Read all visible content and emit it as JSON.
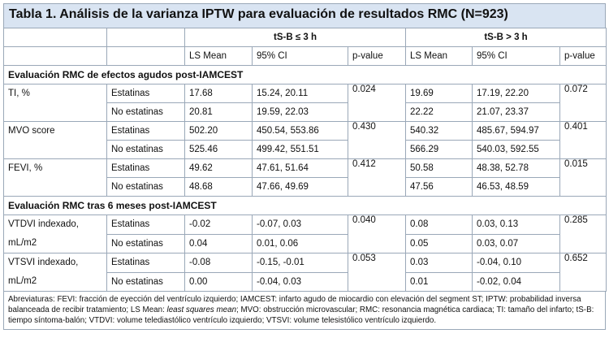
{
  "title": "Tabla 1. Análisis de la varianza IPTW para evaluación de resultados RMC (N=923)",
  "groups": [
    "tS-B ≤ 3 h",
    "tS-B > 3 h"
  ],
  "columns": [
    "LS Mean",
    "95% CI",
    "p-value",
    "LS Mean",
    "95% CI",
    "p-value"
  ],
  "sections": [
    {
      "label": "Evaluación RMC de efectos agudos post-IAMCEST",
      "rows": [
        {
          "var": "TI, %",
          "groups": [
            {
              "label": "Estatinas",
              "g1": [
                "17.68",
                "15.24, 20.11"
              ],
              "g2": [
                "19.69",
                "17.19, 22.20"
              ]
            },
            {
              "label": "No estatinas",
              "g1": [
                "20.81",
                "19.59, 22.03"
              ],
              "g2": [
                "22.22",
                "21.07, 23.37"
              ]
            }
          ],
          "p1": "0.024",
          "p2": "0.072"
        },
        {
          "var": "MVO score",
          "groups": [
            {
              "label": "Estatinas",
              "g1": [
                "502.20",
                "450.54, 553.86"
              ],
              "g2": [
                "540.32",
                "485.67, 594.97"
              ]
            },
            {
              "label": "No estatinas",
              "g1": [
                "525.46",
                "499.42, 551.51"
              ],
              "g2": [
                "566.29",
                "540.03, 592.55"
              ]
            }
          ],
          "p1": "0.430",
          "p2": "0.401"
        },
        {
          "var": "FEVI, %",
          "groups": [
            {
              "label": "Estatinas",
              "g1": [
                "49.62",
                "47.61, 51.64"
              ],
              "g2": [
                "50.58",
                "48.38, 52.78"
              ]
            },
            {
              "label": "No estatinas",
              "g1": [
                "48.68",
                "47.66, 49.69"
              ],
              "g2": [
                "47.56",
                "46.53, 48.59"
              ]
            }
          ],
          "p1": "0.412",
          "p2": "0.015"
        }
      ]
    },
    {
      "label": "Evaluación RMC tras 6 meses post-IAMCEST",
      "rows": [
        {
          "var": "VTDVI indexado, mL/m2",
          "groups": [
            {
              "label": "Estatinas",
              "g1": [
                "-0.02",
                "-0.07, 0.03"
              ],
              "g2": [
                "0.08",
                "0.03, 0.13"
              ]
            },
            {
              "label": "No estatinas",
              "g1": [
                "0.04",
                "0.01, 0.06"
              ],
              "g2": [
                "0.05",
                "0.03, 0.07"
              ]
            }
          ],
          "p1": "0.040",
          "p2": "0.285"
        },
        {
          "var": "VTSVI indexado, mL/m2",
          "groups": [
            {
              "label": "Estatinas",
              "g1": [
                "-0.08",
                "-0.15, -0.01"
              ],
              "g2": [
                "0.03",
                "-0.04, 0.10"
              ]
            },
            {
              "label": "No estatinas",
              "g1": [
                "0.00",
                "-0.04, 0.03"
              ],
              "g2": [
                "0.01",
                "-0.02, 0.04"
              ]
            }
          ],
          "p1": "0.053",
          "p2": "0.652"
        }
      ]
    }
  ],
  "footnote_parts": [
    "Abreviaturas: FEVI: fracción de eyección del ventrículo izquierdo; IAMCEST: infarto agudo de miocardio con elevación del segment ST; IPTW: probabilidad inversa balanceada de recibir tratamiento; LS Mean: ",
    "least squares mean",
    "; MVO: obstrucción microvascular; RMC: resonancia magnética cardiaca; TI: tamaño del infarto; tS-B: tiempo síntoma-balón; VTDVI: volume telediastólico ventrículo izquierdo; VTSVI: volume telesistólico ventrículo izquierdo."
  ]
}
